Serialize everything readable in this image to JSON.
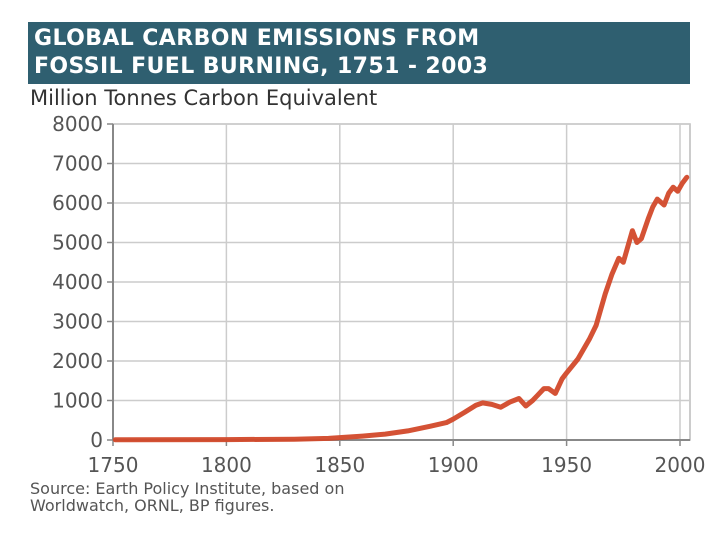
{
  "chart_data": {
    "type": "line",
    "title_lines": [
      "GLOBAL CARBON EMISSIONS FROM",
      "FOSSIL FUEL BURNING, 1751 - 2003"
    ],
    "ylabel": "Million Tonnes Carbon Equivalent",
    "xlabel": "",
    "xlim": [
      1750,
      2005
    ],
    "ylim": [
      0,
      8000
    ],
    "x_ticks": [
      1750,
      1800,
      1850,
      1900,
      1950,
      2000
    ],
    "y_ticks": [
      0,
      1000,
      2000,
      3000,
      4000,
      5000,
      6000,
      7000,
      8000
    ],
    "grid": true,
    "series": [
      {
        "name": "Global carbon emissions",
        "color": "#d2492a",
        "x": [
          1751,
          1800,
          1830,
          1845,
          1860,
          1870,
          1880,
          1890,
          1897,
          1900,
          1905,
          1910,
          1913,
          1917,
          1921,
          1925,
          1929,
          1932,
          1935,
          1937,
          1940,
          1942,
          1945,
          1948,
          1950,
          1955,
          1960,
          1963,
          1967,
          1970,
          1973,
          1975,
          1979,
          1981,
          1983,
          1986,
          1988,
          1990,
          1993,
          1995,
          1997,
          1999,
          2001,
          2003
        ],
        "values": [
          5,
          10,
          20,
          40,
          100,
          150,
          230,
          350,
          440,
          530,
          700,
          880,
          940,
          900,
          830,
          960,
          1050,
          860,
          1000,
          1120,
          1300,
          1300,
          1180,
          1550,
          1700,
          2050,
          2550,
          2900,
          3700,
          4200,
          4600,
          4500,
          5300,
          5000,
          5100,
          5600,
          5900,
          6100,
          5950,
          6250,
          6400,
          6300,
          6500,
          6650
        ]
      }
    ]
  },
  "source": {
    "line1": "Source: Earth Policy Institute, based on",
    "line2": "Worldwatch, ORNL, BP figures."
  }
}
